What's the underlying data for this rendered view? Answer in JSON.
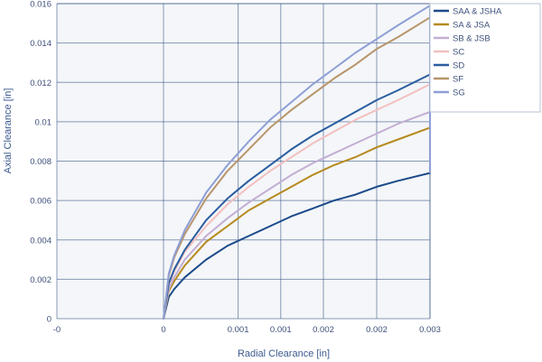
{
  "chart_data": {
    "type": "line",
    "xlabel": "Radial Clearance [in]",
    "ylabel": "Axial Clearance [in]",
    "xlim": [
      -0.001,
      0.0025
    ],
    "ylim": [
      0,
      0.016
    ],
    "grid": true,
    "legend_position": "right",
    "x_ticks": [
      {
        "value": -0.001,
        "label": "-0"
      },
      {
        "value": 0.0,
        "label": "0"
      },
      {
        "value": 0.0007,
        "label": "0.001"
      },
      {
        "value": 0.0011,
        "label": "0.001"
      },
      {
        "value": 0.0015,
        "label": "0.002"
      },
      {
        "value": 0.002,
        "label": "0.002"
      },
      {
        "value": 0.0025,
        "label": "0.003"
      }
    ],
    "y_ticks": [
      {
        "value": 0,
        "label": "0"
      },
      {
        "value": 0.002,
        "label": "0.002"
      },
      {
        "value": 0.004,
        "label": "0.004"
      },
      {
        "value": 0.006,
        "label": "0.006"
      },
      {
        "value": 0.008,
        "label": "0.008"
      },
      {
        "value": 0.01,
        "label": "0.01"
      },
      {
        "value": 0.012,
        "label": "0.012"
      },
      {
        "value": 0.014,
        "label": "0.014"
      },
      {
        "value": 0.016,
        "label": "0.016"
      }
    ],
    "x": [
      0.0,
      5e-05,
      0.0001,
      0.0002,
      0.0004,
      0.0006,
      0.0008,
      0.001,
      0.0012,
      0.0014,
      0.0016,
      0.0018,
      0.002,
      0.0022,
      0.0025
    ],
    "series": [
      {
        "name": "SAA & JSHA",
        "color": "#1c4b8a",
        "values": [
          0.0,
          0.0011,
          0.0015,
          0.0021,
          0.003,
          0.0037,
          0.0042,
          0.0047,
          0.0052,
          0.0056,
          0.006,
          0.0063,
          0.0067,
          0.007,
          0.0074
        ]
      },
      {
        "name": "SA & JSA",
        "color": "#b68a1e",
        "values": [
          0.0,
          0.0014,
          0.0019,
          0.0027,
          0.0039,
          0.0047,
          0.0055,
          0.0061,
          0.0067,
          0.0073,
          0.0078,
          0.0082,
          0.0087,
          0.0091,
          0.0097
        ]
      },
      {
        "name": "SB & JSB",
        "color": "#c3aed3",
        "values": [
          0.0,
          0.0015,
          0.0021,
          0.003,
          0.0042,
          0.0051,
          0.0059,
          0.0066,
          0.0073,
          0.0079,
          0.0084,
          0.0089,
          0.0094,
          0.0099,
          0.0105
        ]
      },
      {
        "name": "SC",
        "color": "#f2c0c0",
        "values": [
          0.0,
          0.0017,
          0.0024,
          0.0034,
          0.0047,
          0.0058,
          0.0067,
          0.0075,
          0.0082,
          0.0089,
          0.0095,
          0.0101,
          0.0106,
          0.0111,
          0.0119
        ]
      },
      {
        "name": "SD",
        "color": "#2a5d9f",
        "values": [
          0.0,
          0.0018,
          0.0025,
          0.0035,
          0.005,
          0.0061,
          0.007,
          0.0078,
          0.0086,
          0.0093,
          0.0099,
          0.0105,
          0.0111,
          0.0116,
          0.0124
        ]
      },
      {
        "name": "SF",
        "color": "#b8956b",
        "values": [
          0.0,
          0.0022,
          0.0031,
          0.0043,
          0.0061,
          0.0075,
          0.0086,
          0.0097,
          0.0106,
          0.0114,
          0.0122,
          0.0129,
          0.0137,
          0.0143,
          0.0153
        ]
      },
      {
        "name": "SG",
        "color": "#8e9fd6",
        "values": [
          0.0,
          0.0023,
          0.0032,
          0.0045,
          0.0064,
          0.0078,
          0.009,
          0.0101,
          0.011,
          0.0119,
          0.0127,
          0.0135,
          0.0142,
          0.0149,
          0.0159
        ]
      }
    ],
    "plot_background": "#f4f6f9",
    "grid_color": "#2c4a7e",
    "axis_text_color": "#3d4f7a"
  }
}
